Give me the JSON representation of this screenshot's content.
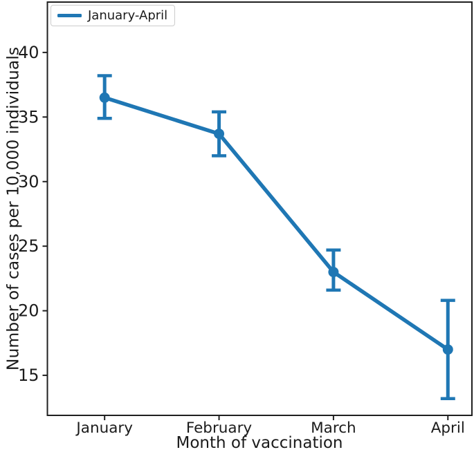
{
  "chart_data": {
    "type": "line",
    "categories": [
      "January",
      "February",
      "March",
      "April"
    ],
    "series": [
      {
        "name": "January-April",
        "values": [
          36.5,
          33.7,
          23.0,
          17.0
        ],
        "err_low": [
          34.9,
          32.0,
          21.6,
          13.2
        ],
        "err_high": [
          38.2,
          35.4,
          24.7,
          20.8
        ]
      }
    ],
    "title": "",
    "xlabel": "Month of vaccination",
    "ylabel": "Number of cases per 10,000 individuals",
    "yticks": [
      15,
      20,
      25,
      30,
      35,
      40
    ],
    "ylim": [
      11.9,
      43.9
    ],
    "xlim": [
      -0.5,
      3.21
    ],
    "grid": false,
    "legend": {
      "position": "upper left",
      "entries": [
        "January-April"
      ]
    },
    "colors": {
      "line": "#1f77b4",
      "spine": "#1f1f1f",
      "text": "#1b1b1b",
      "legend_border": "#cccccc"
    },
    "marker": "circle",
    "error_bars": true
  }
}
